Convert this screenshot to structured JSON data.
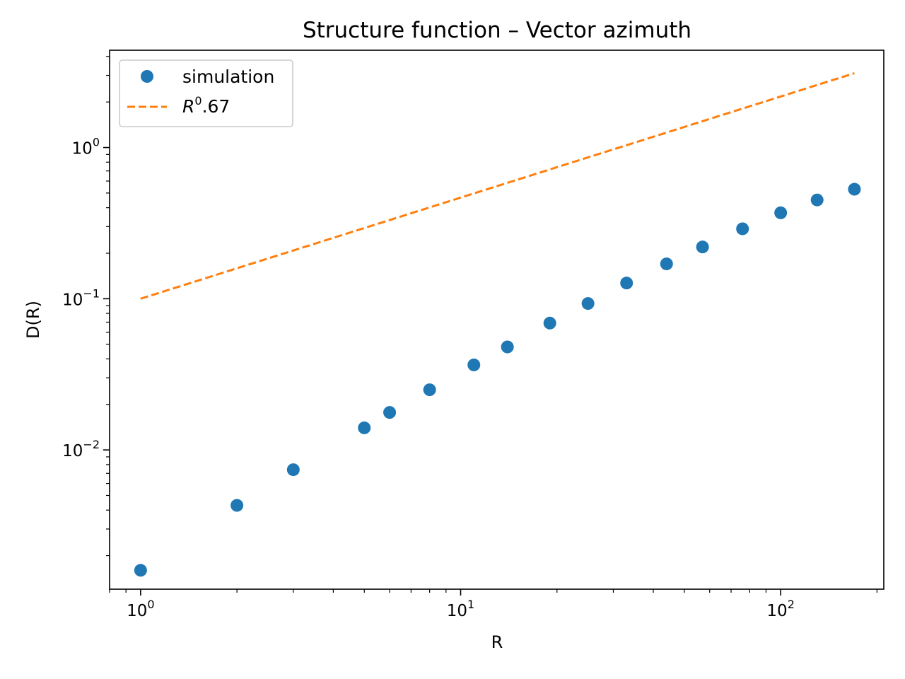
{
  "chart_data": {
    "type": "scatter",
    "title": "Structure function – Vector azimuth",
    "xlabel": "R",
    "ylabel": "D(R)",
    "xscale": "log",
    "yscale": "log",
    "xlim": [
      0.8,
      210
    ],
    "ylim": [
      0.0012,
      4.4
    ],
    "grid": false,
    "legend_position": "top-left",
    "x_ticks": [
      {
        "base": "10",
        "exp": "0",
        "value": 1
      },
      {
        "base": "10",
        "exp": "1",
        "value": 10
      },
      {
        "base": "10",
        "exp": "2",
        "value": 100
      }
    ],
    "y_ticks": [
      {
        "base": "10",
        "exp": "−2",
        "value": 0.01
      },
      {
        "base": "10",
        "exp": "−1",
        "value": 0.1
      },
      {
        "base": "10",
        "exp": "0",
        "value": 1
      }
    ],
    "series": [
      {
        "name": "simulation",
        "style": "markers",
        "color": "#1f77b4",
        "x": [
          1,
          2,
          3,
          5,
          6,
          8,
          11,
          14,
          19,
          25,
          33,
          44,
          57,
          76,
          100,
          130,
          170
        ],
        "y": [
          0.0016,
          0.0043,
          0.0074,
          0.014,
          0.0177,
          0.025,
          0.0365,
          0.048,
          0.069,
          0.093,
          0.127,
          0.17,
          0.22,
          0.29,
          0.37,
          0.45,
          0.53
        ]
      },
      {
        "name_base": "R",
        "name_sup": "0",
        "name_tail": ".67",
        "style": "dashed-line",
        "color": "#ff7f0e",
        "x": [
          1,
          170
        ],
        "y": [
          0.1,
          3.1
        ]
      }
    ]
  }
}
